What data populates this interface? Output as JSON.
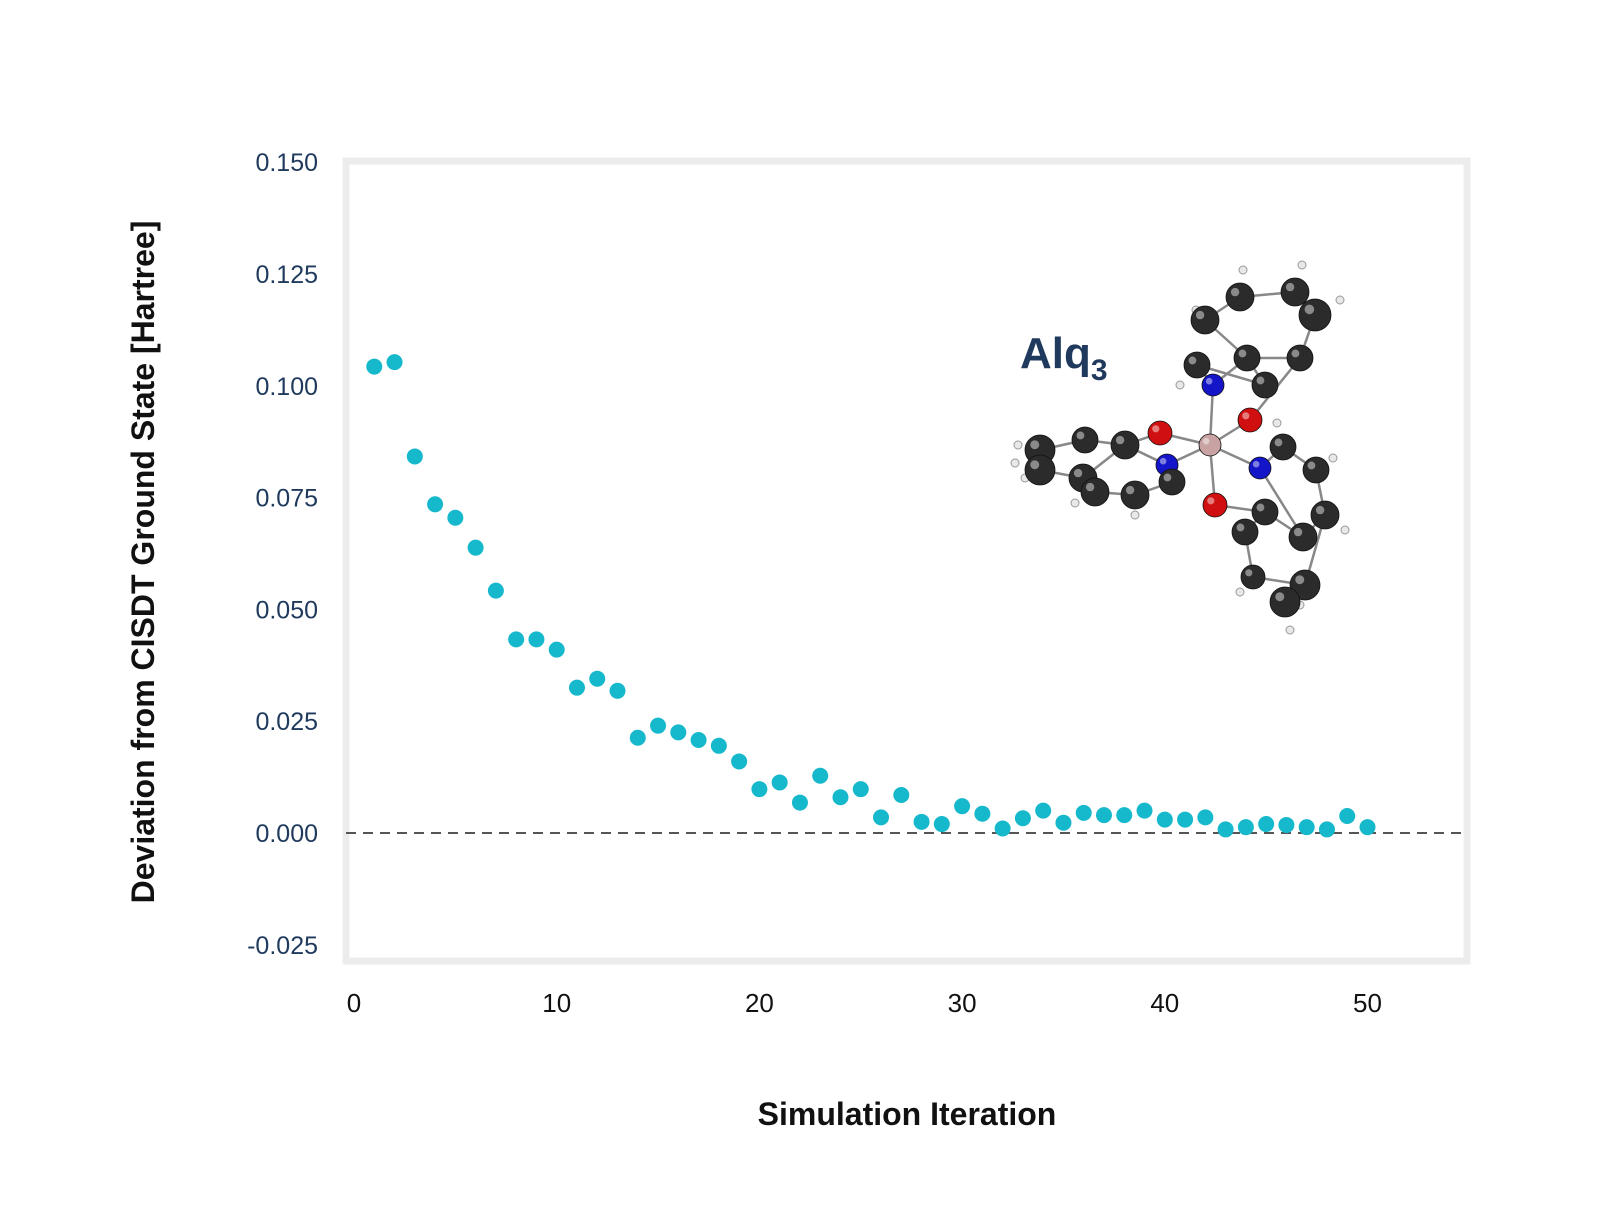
{
  "chart_data": {
    "type": "scatter",
    "title": "",
    "xlabel": "Simulation Iteration",
    "ylabel": "Deviation from CISDT Ground State [Hartree]",
    "xlim": [
      0,
      55
    ],
    "ylim": [
      -0.025,
      0.15
    ],
    "x_ticks": [
      0,
      10,
      20,
      30,
      40,
      50
    ],
    "x_tick_labels": [
      "0",
      "10",
      "20",
      "30",
      "40",
      "50"
    ],
    "y_ticks": [
      0.15,
      0.125,
      0.1,
      0.075,
      0.05,
      0.025,
      0.0,
      -0.025
    ],
    "y_tick_labels": [
      "0.150",
      "0.125",
      "0.100",
      "0.075",
      "0.050",
      "0.025",
      "0.000",
      "-0.025"
    ],
    "grid": false,
    "reference_line": {
      "y": 0.0,
      "style": "dashed",
      "color": "#555555"
    },
    "series": [
      {
        "color": "#16b8cc",
        "x": [
          1,
          2,
          3,
          4,
          5,
          6,
          7,
          8,
          9,
          10,
          11,
          12,
          13,
          14,
          15,
          16,
          17,
          18,
          19,
          20,
          21,
          22,
          23,
          24,
          25,
          26,
          27,
          28,
          29,
          30,
          31,
          32,
          33,
          34,
          35,
          36,
          37,
          38,
          39,
          40,
          41,
          42,
          43,
          44,
          45,
          46,
          47,
          48,
          49,
          50
        ],
        "y": [
          0.1043,
          0.1053,
          0.0842,
          0.0735,
          0.0705,
          0.0638,
          0.0542,
          0.0433,
          0.0433,
          0.041,
          0.0325,
          0.0345,
          0.0318,
          0.0213,
          0.024,
          0.0225,
          0.0208,
          0.0195,
          0.016,
          0.0098,
          0.0113,
          0.0068,
          0.0128,
          0.008,
          0.0098,
          0.0035,
          0.0085,
          0.0025,
          0.002,
          0.006,
          0.0043,
          0.001,
          0.0033,
          0.005,
          0.0023,
          0.0045,
          0.004,
          0.004,
          0.005,
          0.003,
          0.003,
          0.0035,
          0.0008,
          0.0013,
          0.002,
          0.0018,
          0.0013,
          0.0008,
          0.0038,
          0.0013
        ]
      }
    ],
    "annotation": {
      "text": "Alq",
      "subscript": "3"
    }
  },
  "colors": {
    "marker": "#16b8cc",
    "frame": "#ececec",
    "tick_text": "#1f3a5c",
    "annotation_text": "#1f3a5c",
    "atom_carbon": "#2b2b2b",
    "atom_nitrogen": "#1414c8",
    "atom_oxygen": "#d01010",
    "atom_aluminum": "#c9a3a3",
    "atom_hydrogen": "#e8e8e8"
  },
  "molecule": {
    "icon": "alq3-molecule-icon"
  }
}
